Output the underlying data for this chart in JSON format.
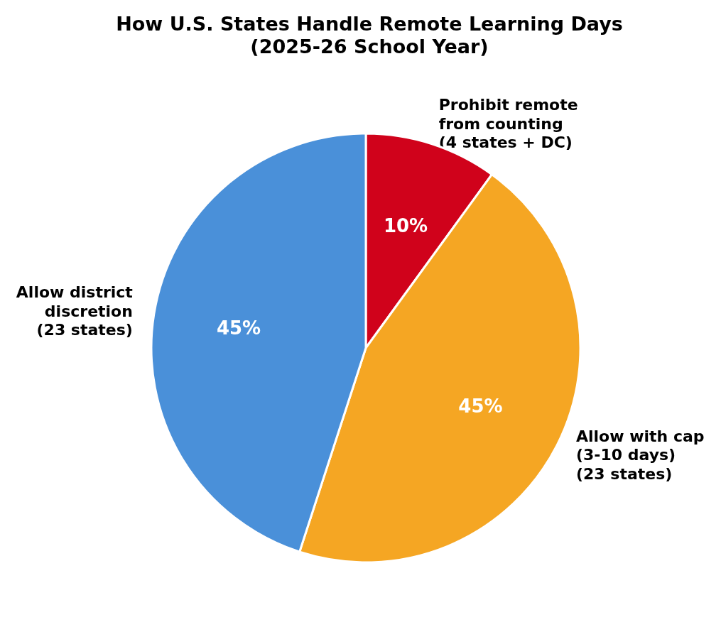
{
  "chart_data": {
    "type": "pie",
    "title": "How U.S. States Handle Remote Learning Days\n(2025-26 School Year)",
    "categories": [
      "Prohibit remote\nfrom counting\n(4 states + DC)",
      "Allow with cap\n(3-10 days)\n(23 states)",
      "Allow district\ndiscretion\n(23 states)"
    ],
    "values": [
      10,
      45,
      45
    ],
    "value_labels": [
      "10%",
      "45%",
      "45%"
    ],
    "colors": [
      "#d0021b",
      "#f5a623",
      "#4a90d9"
    ]
  }
}
